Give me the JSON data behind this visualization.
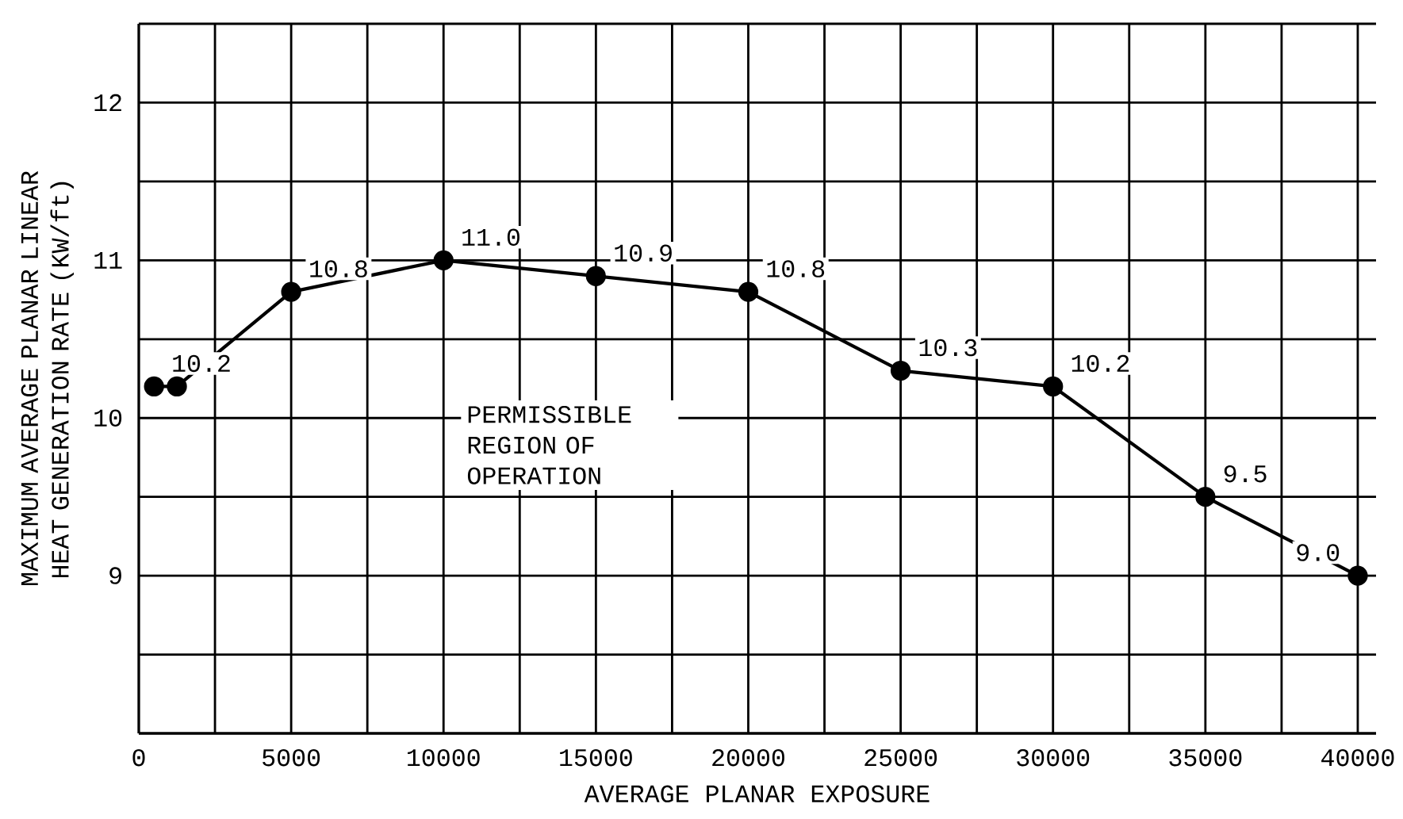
{
  "chart_data": {
    "type": "line",
    "xlabel": "AVERAGE PLANAR EXPOSURE",
    "ylabel": "MAXIMUM AVERAGE PLANAR LINEAR HEAT GENERATION RATE (KW/ft)",
    "x": [
      500,
      1250,
      5000,
      10000,
      15000,
      20000,
      25000,
      30000,
      35000,
      40000
    ],
    "series": [
      {
        "color": "#000000",
        "values": [
          10.2,
          10.2,
          10.8,
          11.0,
          10.9,
          10.8,
          10.3,
          10.2,
          9.5,
          9.0
        ],
        "value_labels": [
          "10.2",
          null,
          "10.8",
          "11.0",
          "10.9",
          "10.8",
          "10.3",
          "10.2",
          "9.5",
          "9.0"
        ]
      }
    ],
    "xlim": [
      0,
      40600
    ],
    "ylim": [
      8,
      12.5
    ],
    "xticks": [
      0,
      {
        "value": 2500,
        "label": null
      },
      5000,
      {
        "value": 7500,
        "label": null
      },
      10000,
      {
        "value": 12500,
        "label": null
      },
      15000,
      {
        "value": 17500,
        "label": null
      },
      20000,
      {
        "value": 22500,
        "label": null
      },
      25000,
      {
        "value": 27500,
        "label": null
      },
      30000,
      {
        "value": 32500,
        "label": null
      },
      35000,
      {
        "value": 37500,
        "label": null
      },
      40000
    ],
    "yticks": [
      {
        "value": 8,
        "label": null
      },
      {
        "value": 8.5,
        "label": null
      },
      9,
      {
        "value": 9.5,
        "label": null
      },
      10,
      {
        "value": 10.5,
        "label": null
      },
      11,
      {
        "value": 11.5,
        "label": null
      },
      12,
      {
        "value": 12.5,
        "label": null
      }
    ],
    "grid": true,
    "marker": "circle",
    "line_style": "solid",
    "annotations": [
      "PERMISSIBLE REGION OF OPERATION"
    ]
  }
}
